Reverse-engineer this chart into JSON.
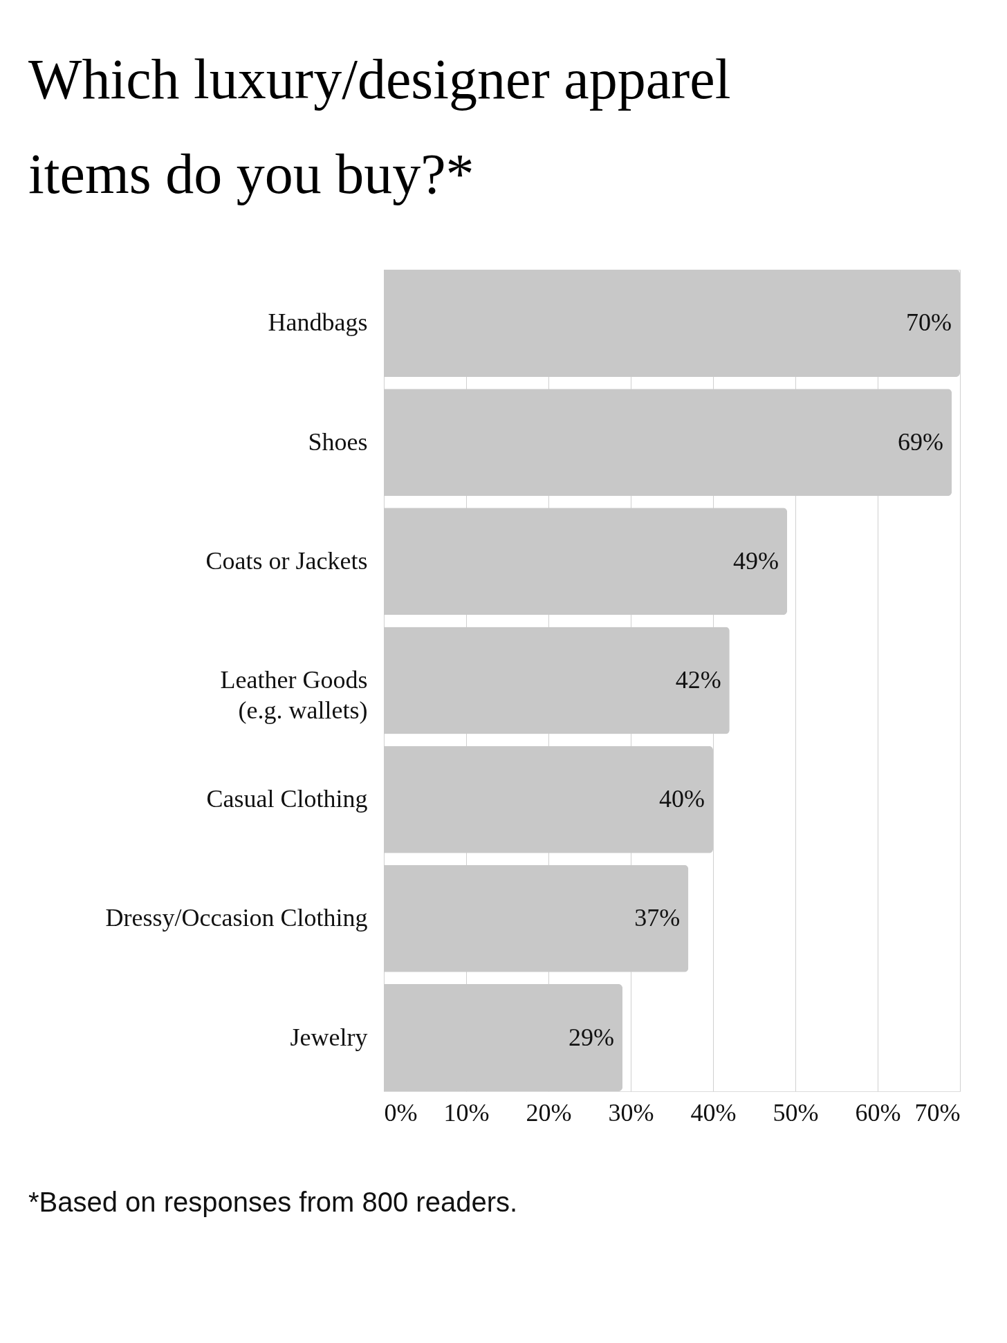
{
  "chart_data": {
    "type": "bar",
    "orientation": "horizontal",
    "title": [
      "Which luxury/designer apparel",
      "items do you buy?*"
    ],
    "categories": [
      "Handbags",
      "Shoes",
      "Coats or Jackets",
      "Leather Goods\n(e.g. wallets)",
      "Casual Clothing",
      "Dressy/Occasion Clothing",
      "Jewelry"
    ],
    "values": [
      70,
      69,
      49,
      42,
      40,
      37,
      29
    ],
    "color": "#c8c8c8",
    "value_labels": [
      "70%",
      "69%",
      "49%",
      "42%",
      "40%",
      "37%",
      "29%"
    ],
    "xlim": [
      0,
      70
    ],
    "xticks": [
      {
        "value": 0,
        "label": "0%"
      },
      {
        "value": 10,
        "label": "10%"
      },
      {
        "value": 20,
        "label": "20%"
      },
      {
        "value": 30,
        "label": "30%"
      },
      {
        "value": 40,
        "label": "40%"
      },
      {
        "value": 50,
        "label": "50%"
      },
      {
        "value": 60,
        "label": "60%"
      },
      {
        "value": 70,
        "label": "70%"
      }
    ],
    "grid": "x",
    "annotations": [
      "*Based on responses from 800 readers."
    ]
  }
}
